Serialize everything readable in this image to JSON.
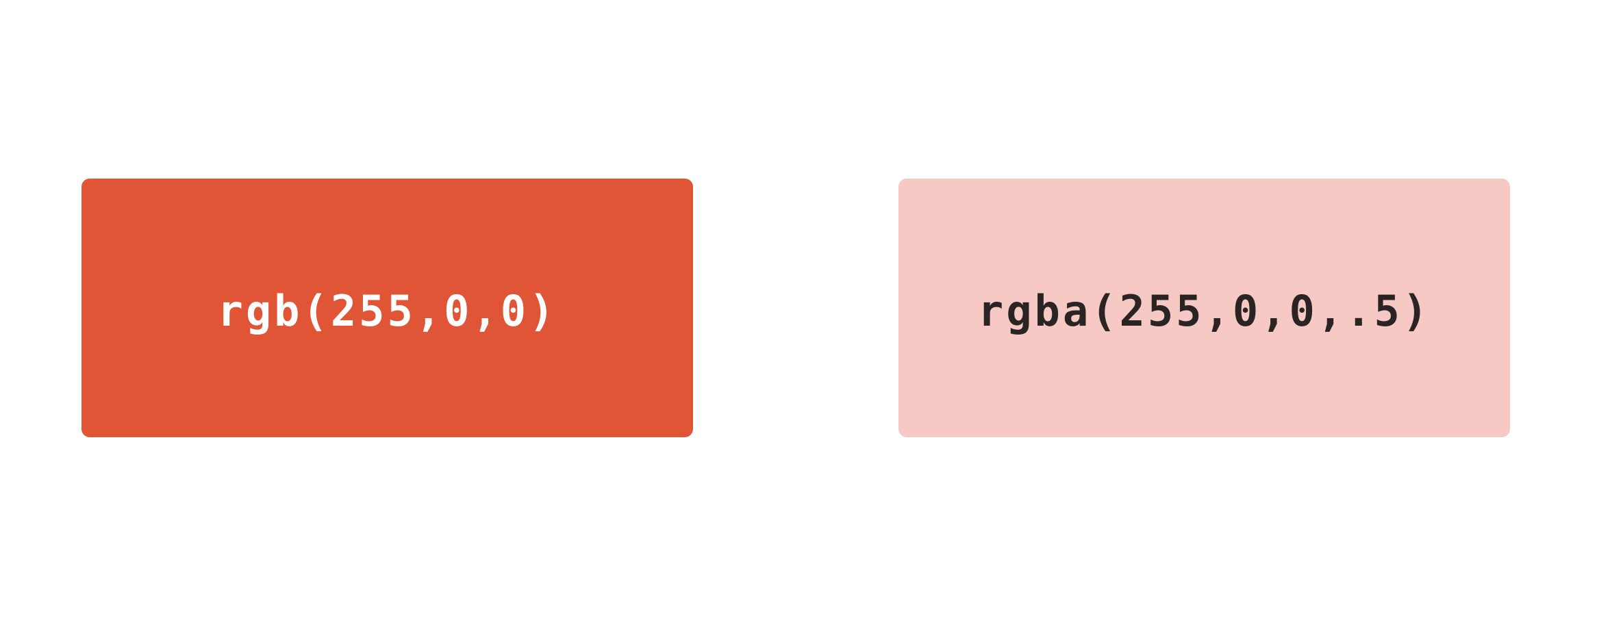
{
  "swatches": [
    {
      "label": "rgb(255,0,0)",
      "background": "#e05535",
      "text_color": "#ffffff"
    },
    {
      "label": "rgba(255,0,0,.5)",
      "background": "#f6c9c4",
      "text_color": "#2b2424"
    }
  ]
}
